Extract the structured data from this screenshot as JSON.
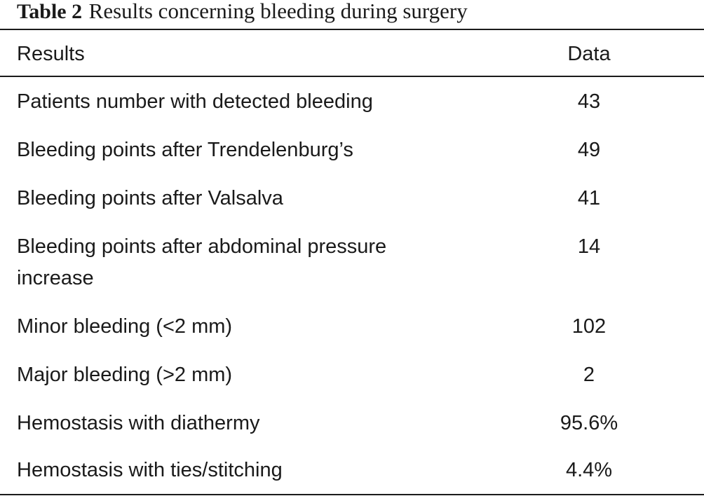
{
  "caption": {
    "label": "Table 2",
    "text": "Results concerning bleeding during surgery"
  },
  "header": {
    "results": "Results",
    "data": "Data"
  },
  "rows": [
    {
      "result": "Patients number with detected bleeding",
      "data": "43"
    },
    {
      "result": "Bleeding points after Trendelenburg’s",
      "data": "49"
    },
    {
      "result": "Bleeding points after Valsalva",
      "data": "41"
    },
    {
      "result_line1": "Bleeding points after abdominal pressure",
      "result_line2": "increase",
      "data": "14"
    },
    {
      "result": "Minor bleeding (<2 mm)",
      "data": "102"
    },
    {
      "result": "Major bleeding (>2 mm)",
      "data": "2"
    },
    {
      "result": "Hemostasis with diathermy",
      "data": "95.6%"
    },
    {
      "result": "Hemostasis with ties/stitching",
      "data": "4.4%"
    }
  ]
}
